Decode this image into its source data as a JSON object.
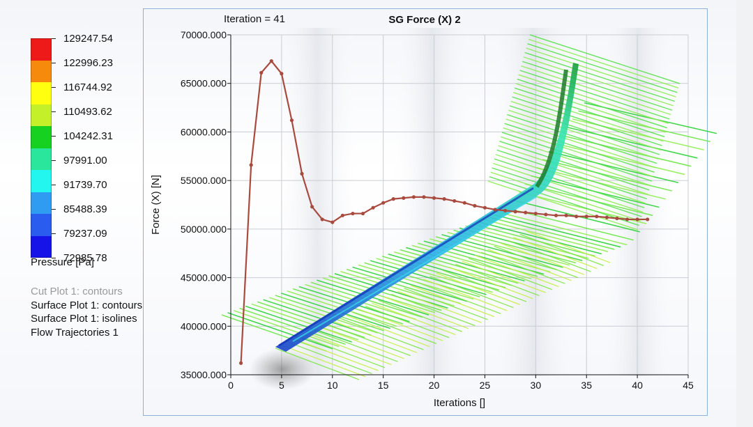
{
  "legend": {
    "values": [
      "129247.54",
      "122996.23",
      "116744.92",
      "110493.62",
      "104242.31",
      "97991.00",
      "91739.70",
      "85488.39",
      "79237.09",
      "72985.78"
    ],
    "colors": [
      "#ee1a1a",
      "#f58a0c",
      "#ffff10",
      "#c4f02a",
      "#17d121",
      "#2ae59c",
      "#22f6ee",
      "#2f9cf2",
      "#2a5cf0",
      "#1613e8"
    ],
    "title": "Pressure [Pa]"
  },
  "plot_list": [
    "Cut Plot 1: contours",
    "Surface Plot 1: contours",
    "Surface Plot 1: isolines",
    "Flow Trajectories 1"
  ],
  "chart_data": {
    "type": "line",
    "title": "SG Force (X) 2",
    "iteration_label": "Iteration = 41",
    "xlabel": "Iterations []",
    "ylabel": "Force (X) [N]",
    "xlim": [
      0,
      45
    ],
    "ylim": [
      35000,
      70000
    ],
    "xticks": [
      "0",
      "5",
      "10",
      "15",
      "20",
      "25",
      "30",
      "35",
      "40",
      "45"
    ],
    "yticks": [
      "35000.000",
      "40000.000",
      "45000.000",
      "50000.000",
      "55000.000",
      "60000.000",
      "65000.000",
      "70000.000"
    ],
    "grid": true,
    "series_color": "#a94a3f",
    "x": [
      1,
      2,
      3,
      4,
      5,
      6,
      7,
      8,
      9,
      10,
      11,
      12,
      13,
      14,
      15,
      16,
      17,
      18,
      19,
      20,
      21,
      22,
      23,
      24,
      25,
      26,
      27,
      28,
      29,
      30,
      31,
      32,
      33,
      34,
      35,
      36,
      37,
      38,
      39,
      40,
      41
    ],
    "y": [
      36200,
      56600,
      66100,
      67300,
      66000,
      61200,
      55700,
      52300,
      51000,
      50700,
      51400,
      51600,
      51600,
      52200,
      52700,
      53100,
      53200,
      53300,
      53300,
      53200,
      53100,
      52900,
      52700,
      52400,
      52200,
      52000,
      51900,
      51800,
      51700,
      51600,
      51500,
      51400,
      51400,
      51300,
      51300,
      51300,
      51200,
      51100,
      51000,
      51000,
      51000
    ]
  }
}
